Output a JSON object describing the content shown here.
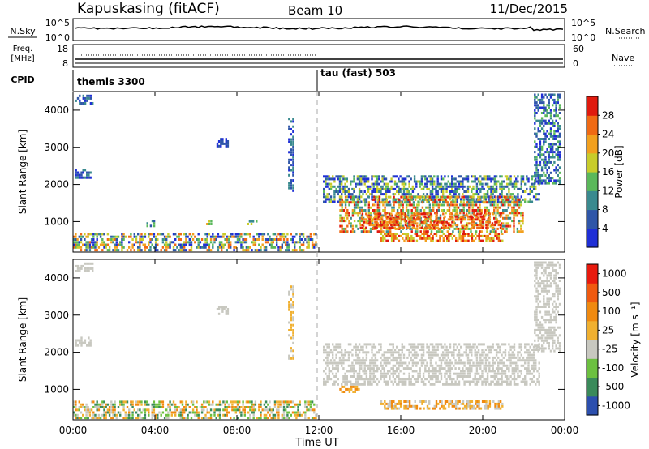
{
  "header": {
    "station": "Kapuskasing (fitACF)",
    "beam": "Beam 10",
    "date": "11/Dec/2015"
  },
  "params": {
    "nsky_label": "N.Sky",
    "nsky_ticks": [
      "10^5",
      "10^0"
    ],
    "nsearch_label": "N.Search",
    "freq_label": "Freq.",
    "freq_unit": "[MHz]",
    "freq_ticks": [
      "18",
      "8"
    ],
    "nave_ticks": [
      "60",
      "0"
    ],
    "nave_label": "Nave",
    "cpid_label": "CPID",
    "cpid_modes": [
      {
        "name": "themis 3300",
        "start_hour": 0
      },
      {
        "name": "tau (fast) 503",
        "start_hour": 12
      }
    ]
  },
  "colors": {
    "power": [
      "#1f2fd6",
      "#2f56a8",
      "#3a8a8f",
      "#5ab85a",
      "#c8cc2a",
      "#f2a01e",
      "#f06a14",
      "#e01a0e"
    ],
    "velocity": [
      "#2c4fae",
      "#3a8a5a",
      "#6cc040",
      "#c8c8c0",
      "#f0b030",
      "#f08a10",
      "#f05a10",
      "#e81a0e"
    ]
  },
  "chart_data": [
    {
      "type": "heatmap",
      "name": "power",
      "ylabel": "Slant Range [km]",
      "ylim": [
        180,
        4500
      ],
      "yticks": [
        "1000",
        "2000",
        "3000",
        "4000"
      ],
      "xlim": [
        0,
        24
      ],
      "colorbar_label": "Power [dB]",
      "colorbar_ticks": [
        "4",
        "8",
        "12",
        "16",
        "20",
        "24",
        "28"
      ],
      "regions": [
        {
          "x": [
            0.1,
            1.0
          ],
          "y": [
            4150,
            4420
          ],
          "c": [
            0,
            1,
            2
          ]
        },
        {
          "x": [
            0.1,
            0.9
          ],
          "y": [
            2150,
            2420
          ],
          "c": [
            0,
            1,
            2
          ]
        },
        {
          "x": [
            0.0,
            11.9
          ],
          "y": [
            200,
            700
          ],
          "c": [
            0,
            1,
            2,
            3,
            4,
            5,
            6
          ]
        },
        {
          "x": [
            3.5,
            4.0
          ],
          "y": [
            850,
            1050
          ],
          "c": [
            1,
            2,
            3
          ]
        },
        {
          "x": [
            6.5,
            6.8
          ],
          "y": [
            900,
            1050
          ],
          "c": [
            3,
            4,
            5
          ]
        },
        {
          "x": [
            7.0,
            7.6
          ],
          "y": [
            3000,
            3250
          ],
          "c": [
            0,
            1
          ]
        },
        {
          "x": [
            8.5,
            9.0
          ],
          "y": [
            900,
            1050
          ],
          "c": [
            2,
            3,
            4
          ]
        },
        {
          "x": [
            10.5,
            10.8
          ],
          "y": [
            1800,
            3800
          ],
          "c": [
            0,
            1,
            2
          ]
        },
        {
          "x": [
            12.2,
            22.8
          ],
          "y": [
            1500,
            2250
          ],
          "c": [
            0,
            1,
            2,
            3,
            4
          ]
        },
        {
          "x": [
            13.0,
            22.0
          ],
          "y": [
            700,
            1700
          ],
          "c": [
            2,
            3,
            4,
            5,
            6,
            7
          ]
        },
        {
          "x": [
            14.0,
            21.0
          ],
          "y": [
            800,
            1250
          ],
          "c": [
            5,
            6,
            7
          ]
        },
        {
          "x": [
            15.0,
            21.0
          ],
          "y": [
            450,
            700
          ],
          "c": [
            4,
            5,
            6,
            7
          ]
        },
        {
          "x": [
            22.5,
            23.8
          ],
          "y": [
            2000,
            4450
          ],
          "c": [
            0,
            1,
            2,
            3
          ]
        }
      ]
    },
    {
      "type": "heatmap",
      "name": "velocity",
      "ylabel": "Slant Range [km]",
      "ylim": [
        180,
        4500
      ],
      "yticks": [
        "1000",
        "2000",
        "3000",
        "4000"
      ],
      "xlim": [
        0,
        24
      ],
      "xticks": [
        "00:00",
        "04:00",
        "08:00",
        "12:00",
        "16:00",
        "20:00",
        "00:00"
      ],
      "xlabel": "Time UT",
      "colorbar_label": "Velocity [m s⁻¹]",
      "colorbar_ticks": [
        "1000",
        "500",
        "100",
        "25",
        "-25",
        "-100",
        "-500",
        "-1000"
      ],
      "regions": [
        {
          "x": [
            0.1,
            1.0
          ],
          "y": [
            4150,
            4420
          ],
          "c": [
            3
          ]
        },
        {
          "x": [
            0.1,
            0.9
          ],
          "y": [
            2150,
            2420
          ],
          "c": [
            3
          ]
        },
        {
          "x": [
            0.0,
            11.9
          ],
          "y": [
            200,
            700
          ],
          "c": [
            1,
            2,
            3,
            4,
            5
          ]
        },
        {
          "x": [
            7.0,
            7.6
          ],
          "y": [
            3000,
            3250
          ],
          "c": [
            3
          ]
        },
        {
          "x": [
            10.5,
            10.8
          ],
          "y": [
            1800,
            3800
          ],
          "c": [
            3,
            4
          ]
        },
        {
          "x": [
            12.2,
            22.8
          ],
          "y": [
            1100,
            2250
          ],
          "c": [
            3
          ]
        },
        {
          "x": [
            13.0,
            14.0
          ],
          "y": [
            900,
            1100
          ],
          "c": [
            4,
            5
          ]
        },
        {
          "x": [
            15.0,
            21.0
          ],
          "y": [
            450,
            700
          ],
          "c": [
            3,
            4,
            5
          ]
        },
        {
          "x": [
            22.5,
            23.8
          ],
          "y": [
            2000,
            4450
          ],
          "c": [
            3
          ]
        }
      ]
    }
  ]
}
